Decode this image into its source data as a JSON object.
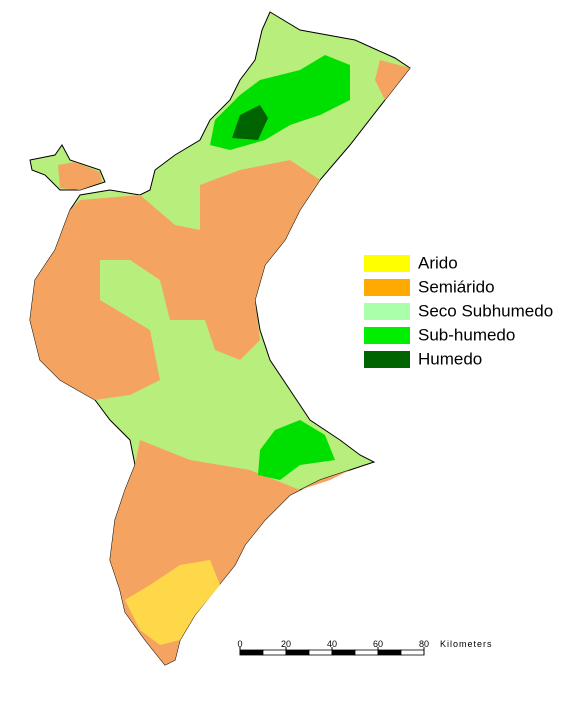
{
  "legend": {
    "items": [
      {
        "label": "Arido",
        "color": "#ffff00"
      },
      {
        "label": "Semiárido",
        "color": "#ffaa00"
      },
      {
        "label": "Seco Subhumedo",
        "color": "#aaffaa"
      },
      {
        "label": "Sub-humedo",
        "color": "#00ee00"
      },
      {
        "label": "Humedo",
        "color": "#006400"
      }
    ]
  },
  "scale": {
    "ticks": [
      0,
      20,
      40,
      60,
      80
    ],
    "unit": "Kilometers"
  }
}
